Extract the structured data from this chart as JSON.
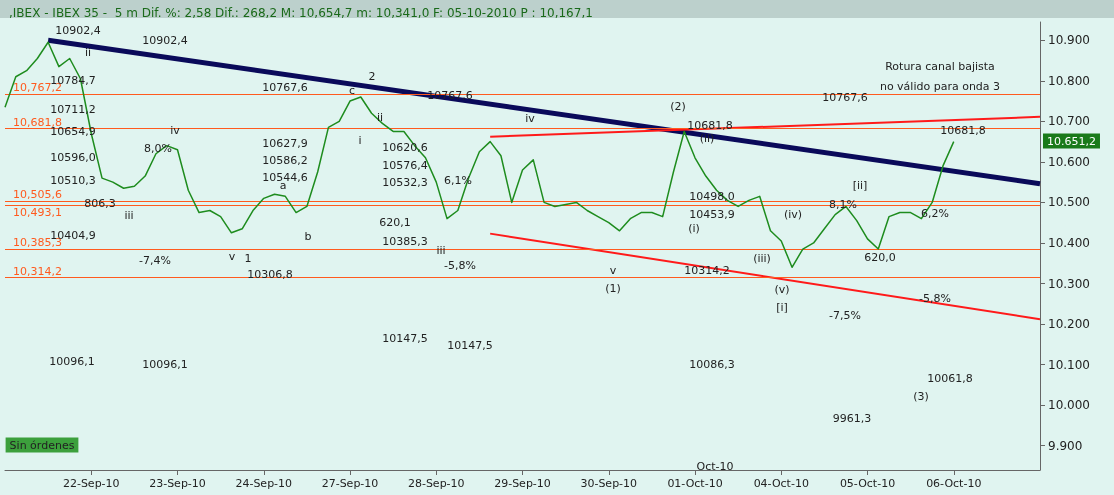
{
  "chart_data": {
    "type": "line",
    "title": ",IBEX - IBEX 35 -  5 m Dif. %: 2,58 Dif.: 268,2 M: 10,654,7 m: 10,341,0 F: 05-10-2010 P : 10,167,1",
    "categories": [
      null,
      null,
      null,
      null,
      null,
      null,
      null,
      null,
      "22-Sep-10",
      null,
      null,
      null,
      null,
      null,
      null,
      null,
      "23-Sep-10",
      null,
      null,
      null,
      null,
      null,
      null,
      null,
      "24-Sep-10",
      null,
      null,
      null,
      null,
      null,
      null,
      null,
      "27-Sep-10",
      null,
      null,
      null,
      null,
      null,
      null,
      null,
      "28-Sep-10",
      null,
      null,
      null,
      null,
      null,
      null,
      null,
      "29-Sep-10",
      null,
      null,
      null,
      null,
      null,
      null,
      null,
      "30-Sep-10",
      null,
      null,
      null,
      null,
      null,
      null,
      null,
      "01-Oct-10",
      null,
      null,
      null,
      null,
      null,
      null,
      null,
      "04-Oct-10",
      null,
      null,
      null,
      null,
      null,
      null,
      null,
      "05-Oct-10",
      null,
      null,
      null,
      null,
      null,
      null,
      null,
      "06-Oct-10",
      null,
      null,
      null,
      null,
      null,
      null,
      null,
      null
    ],
    "ylim": [
      9840,
      10945
    ],
    "yticks": [
      {
        "value": 9900,
        "label": "9.900"
      },
      {
        "value": 10000,
        "label": "10.000"
      },
      {
        "value": 10100,
        "label": "10.100"
      },
      {
        "value": 10200,
        "label": "10.200"
      },
      {
        "value": 10300,
        "label": "10.300"
      },
      {
        "value": 10400,
        "label": "10.400"
      },
      {
        "value": 10500,
        "label": "10.500"
      },
      {
        "value": 10600,
        "label": "10.600"
      },
      {
        "value": 10700,
        "label": "10.700"
      },
      {
        "value": 10800,
        "label": "10.800"
      },
      {
        "value": 10900,
        "label": "10.900"
      }
    ],
    "grid": false,
    "marker": "none",
    "series": [
      {
        "color": "#1e8c1e",
        "values": [
          10735,
          10810,
          10825,
          10855,
          10895,
          10835,
          10855,
          10805,
          10670,
          10560,
          10550,
          10535,
          10540,
          10565,
          10620,
          10640,
          10630,
          10530,
          10475,
          10480,
          10465,
          10425,
          10435,
          10480,
          10510,
          10520,
          10515,
          10475,
          10490,
          10575,
          10685,
          10700,
          10750,
          10760,
          10720,
          10695,
          10675,
          10675,
          10640,
          10610,
          10550,
          10460,
          10480,
          10560,
          10625,
          10650,
          10615,
          10500,
          10580,
          10605,
          10500,
          10490,
          10495,
          10500,
          10480,
          10465,
          10450,
          10430,
          10460,
          10475,
          10475,
          10465,
          10575,
          10675,
          10610,
          10565,
          10530,
          10505,
          10490,
          10505,
          10515,
          10430,
          10405,
          10340,
          10385,
          10400,
          10435,
          10470,
          10490,
          10455,
          10410,
          10385,
          10465,
          10475,
          10475,
          10460,
          10500,
          10590,
          10650,
          null,
          null,
          null,
          null,
          null,
          null,
          null,
          null
        ]
      },
      {
        "color": "#0a0a5a",
        "values": [
          null,
          null,
          null,
          null,
          10900,
          null,
          null,
          null,
          null,
          null,
          null,
          null,
          null,
          null,
          null,
          null,
          null,
          null,
          null,
          null,
          null,
          null,
          null,
          null,
          null,
          null,
          null,
          null,
          null,
          null,
          null,
          null,
          null,
          null,
          null,
          null,
          null,
          null,
          null,
          null,
          null,
          null,
          null,
          null,
          null,
          null,
          null,
          null,
          null,
          null,
          null,
          null,
          null,
          null,
          null,
          null,
          null,
          null,
          null,
          null,
          null,
          null,
          null,
          null,
          null,
          null,
          null,
          null,
          null,
          null,
          null,
          null,
          null,
          null,
          null,
          null,
          null,
          null,
          null,
          null,
          null,
          null,
          null,
          null,
          null,
          null,
          null,
          null,
          null,
          null,
          null,
          null,
          null,
          null,
          null,
          null,
          10546
        ]
      },
      {
        "color": "#ff1a1a",
        "values": [
          null,
          null,
          null,
          null,
          null,
          null,
          null,
          null,
          null,
          null,
          null,
          null,
          null,
          null,
          null,
          null,
          null,
          null,
          null,
          null,
          null,
          null,
          null,
          null,
          null,
          null,
          null,
          null,
          null,
          null,
          null,
          null,
          null,
          null,
          null,
          null,
          null,
          null,
          null,
          null,
          null,
          null,
          null,
          null,
          null,
          10662,
          null,
          null,
          null,
          null,
          null,
          null,
          null,
          null,
          null,
          null,
          null,
          null,
          null,
          null,
          null,
          null,
          null,
          null,
          null,
          null,
          null,
          null,
          null,
          null,
          null,
          null,
          null,
          null,
          null,
          null,
          null,
          null,
          null,
          null,
          null,
          null,
          null,
          null,
          null,
          null,
          null,
          null,
          null,
          null,
          null,
          null,
          null,
          null,
          null,
          null,
          10711
        ]
      },
      {
        "color": "#ff1a1a",
        "values": [
          null,
          null,
          null,
          null,
          null,
          null,
          null,
          null,
          null,
          null,
          null,
          null,
          null,
          null,
          null,
          null,
          null,
          null,
          null,
          null,
          null,
          null,
          null,
          null,
          null,
          null,
          null,
          null,
          null,
          null,
          null,
          null,
          null,
          null,
          null,
          null,
          null,
          null,
          null,
          null,
          null,
          null,
          null,
          null,
          null,
          10423,
          null,
          null,
          null,
          null,
          null,
          null,
          null,
          null,
          null,
          null,
          null,
          null,
          null,
          null,
          null,
          null,
          null,
          null,
          null,
          null,
          null,
          null,
          null,
          null,
          null,
          null,
          null,
          null,
          null,
          null,
          null,
          null,
          null,
          null,
          null,
          null,
          null,
          null,
          null,
          null,
          null,
          null,
          null,
          null,
          null,
          null,
          null,
          null,
          null,
          null,
          10212
        ]
      }
    ],
    "ref_lines": [
      {
        "axis": "y",
        "value": 10767.2,
        "label": "10,767,2",
        "color": "#ff5a1e"
      },
      {
        "axis": "y",
        "value": 10681.8,
        "label": "10,681,8",
        "color": "#ff5a1e"
      },
      {
        "axis": "y",
        "value": 10504,
        "label": "10,505,6",
        "color": "#ff5a1e"
      },
      {
        "axis": "y",
        "value": 10492,
        "label": "10,493,1",
        "color": "#ff5a1e"
      },
      {
        "axis": "y",
        "value": 10385.3,
        "label": "10,385,3",
        "color": "#ff5a1e"
      },
      {
        "axis": "y",
        "value": 10314.2,
        "label": "10,314,2",
        "color": "#ff5a1e"
      }
    ],
    "annotations": [
      "ii",
      "iii",
      "iv",
      "v",
      "1",
      "a",
      "b",
      "c",
      "2",
      "ii",
      "i",
      "iii",
      "iv",
      "v",
      "(1)",
      "(2)",
      "(ii)",
      "(i)",
      "(iii)",
      "(iv)",
      "(v)",
      "[i]",
      "[ii]",
      "(3)",
      "10902,4",
      "10784,7",
      "10711,2",
      "10654,9",
      "10596,0",
      "10510,3",
      "10404,9",
      "10096,1",
      "10096,1",
      "10902,4",
      "8,0%",
      "806,3",
      "-7,4%",
      "10767,6",
      "10627,9",
      "10586,2",
      "10544,6",
      "10306,8",
      "10767,6",
      "10620,6",
      "10576,4",
      "10532,3",
      "620,1",
      "10385,3",
      "6,1%",
      "-5,8%",
      "10147,5",
      "10147,5",
      "10681,8",
      "10498,0",
      "10453,9",
      "10314,2",
      "10086,3",
      "9961,3",
      "-7,5%",
      "8,1%",
      "10767,6",
      "10681,8",
      "6,2%",
      "620,0",
      "-5,8%",
      "10061,8",
      "Rotura canal bajista",
      "no válido para onda 3",
      "Oct-10",
      "10.651,2",
      "Sin órdenes"
    ]
  }
}
